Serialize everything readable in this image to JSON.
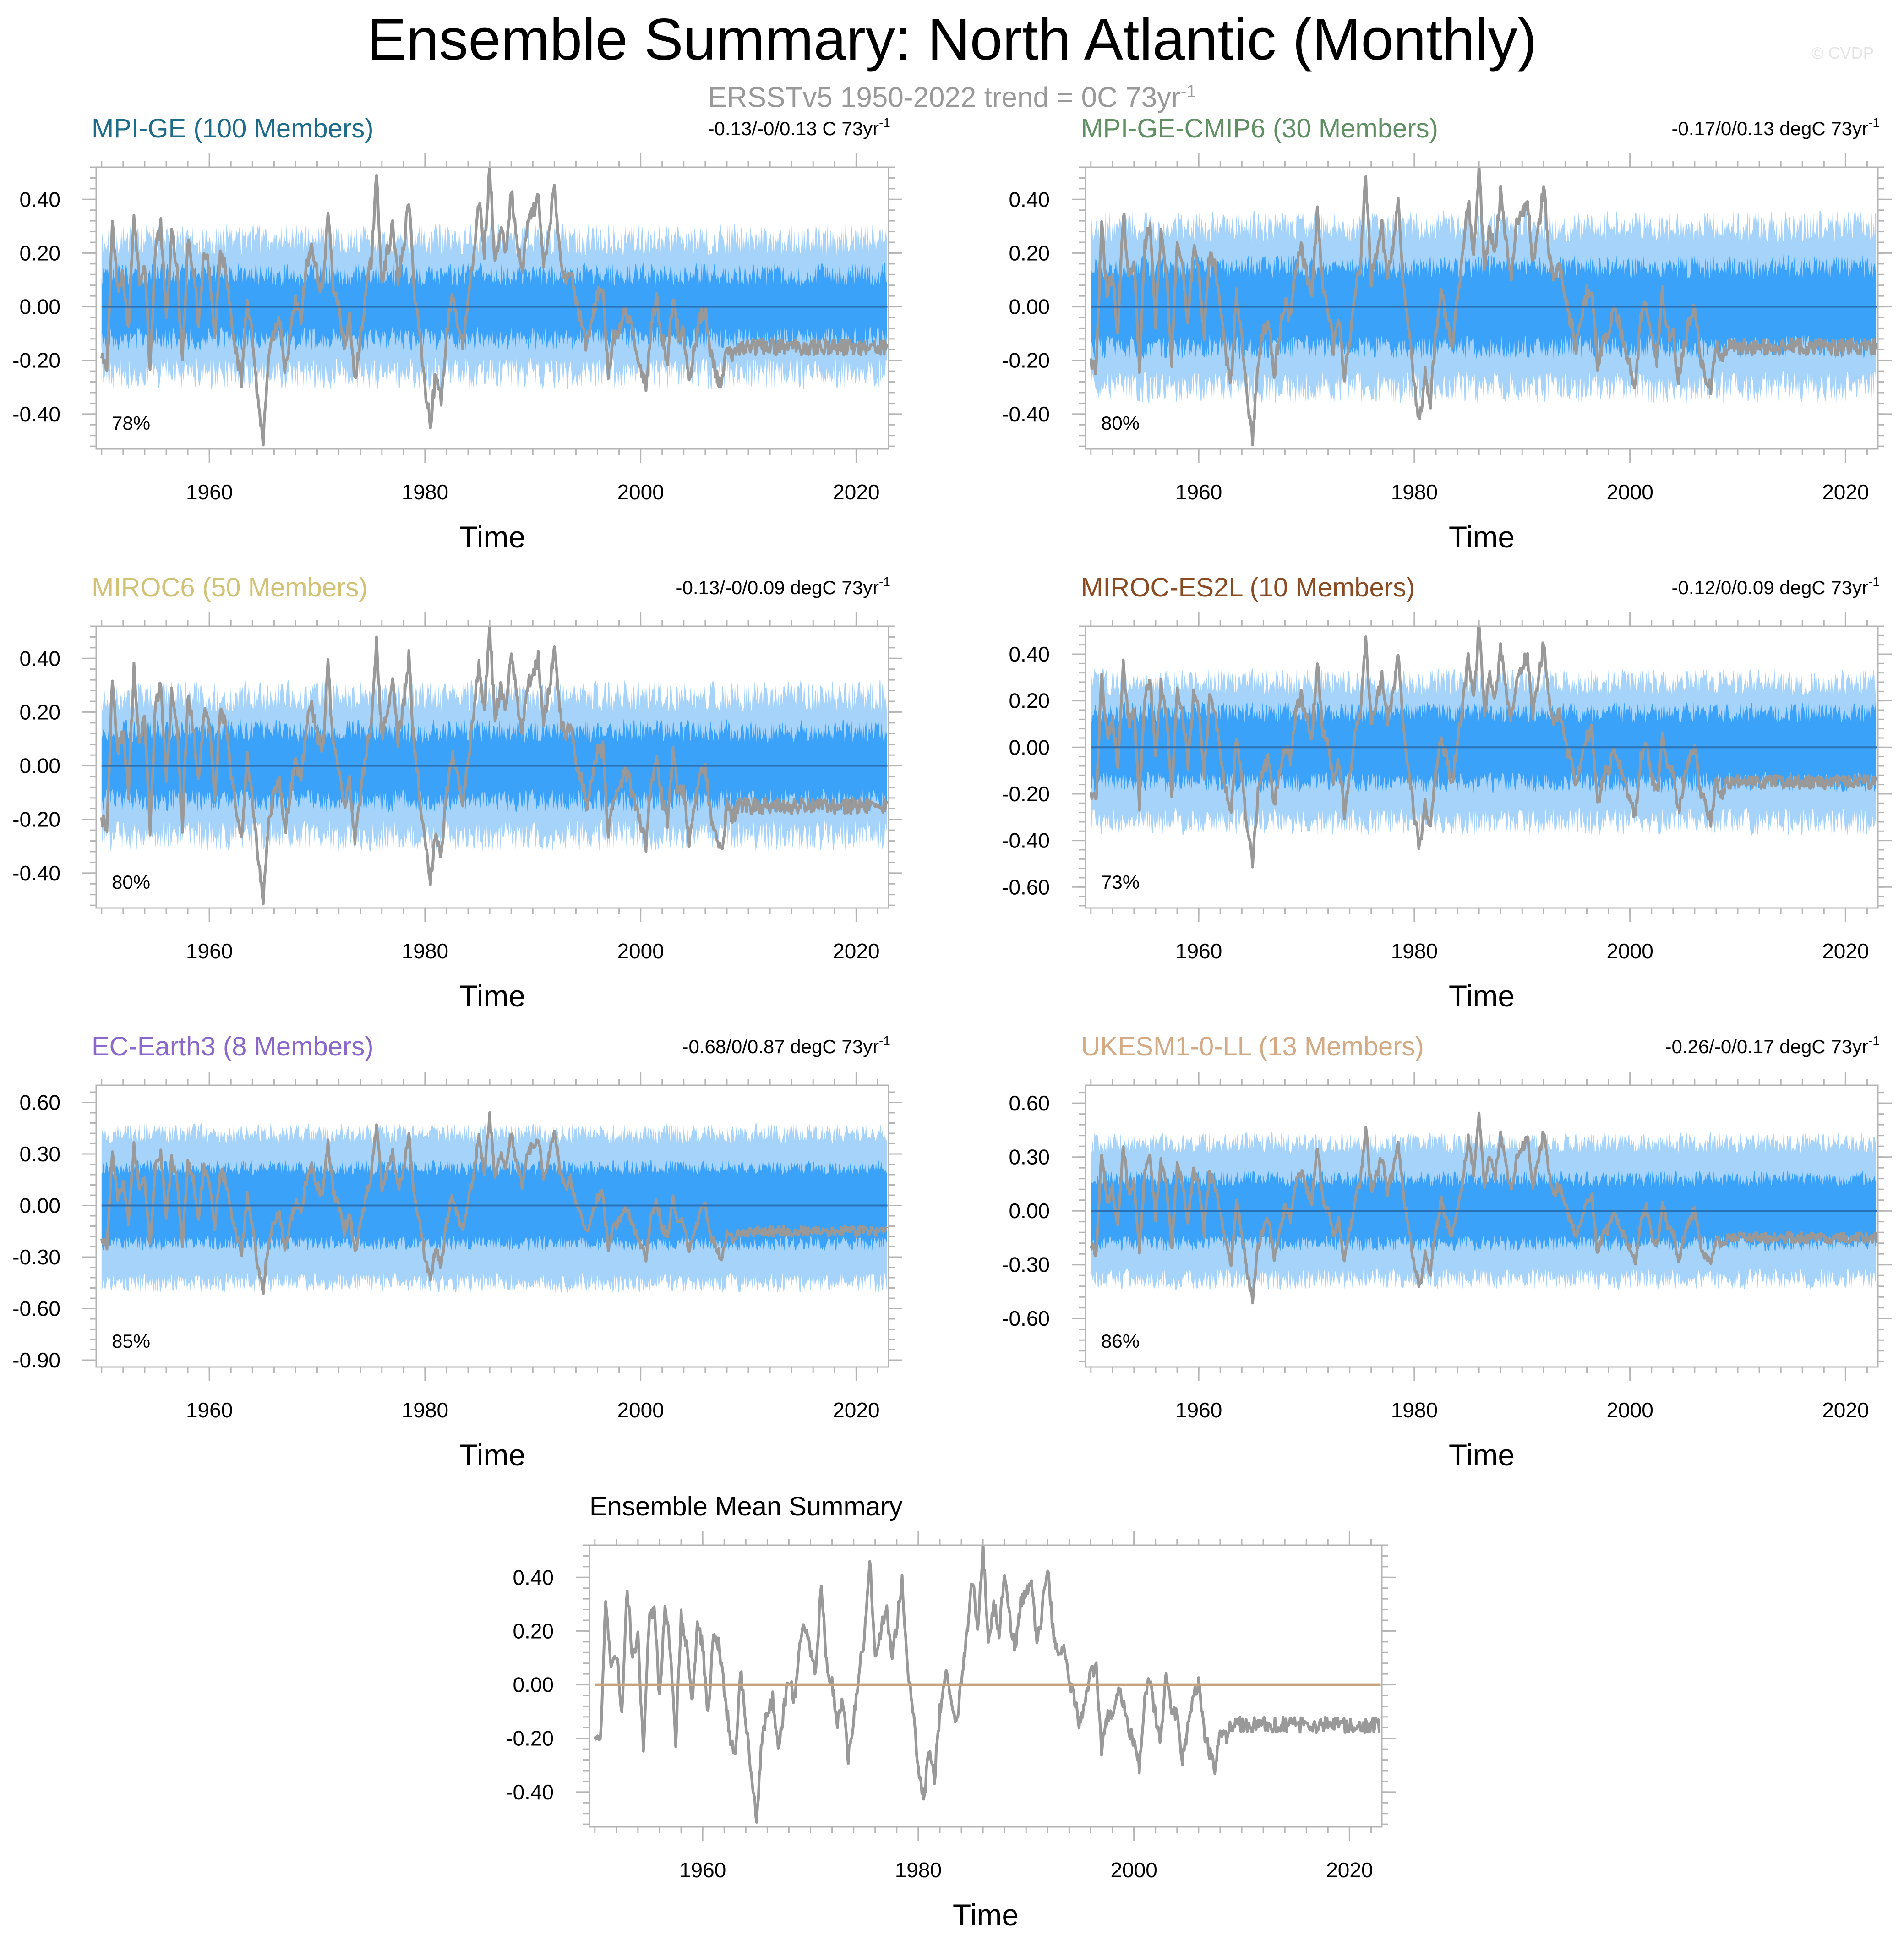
{
  "title": "Ensemble Summary: North Atlantic (Monthly)",
  "subtitle": {
    "text": "ERSSTv5 1950-2022 trend = 0C 73yr",
    "exp": "-1"
  },
  "watermark": "© CVDP",
  "colors": {
    "observed": "#999999",
    "outer_band": "#a6d3fa",
    "inner_band": "#3ba2fa",
    "ensemble_mean_line": "#2a72b8",
    "summary_line": "#c9a27e",
    "frame": "#b5b5b5"
  },
  "chart_data": [
    {
      "type": "area",
      "id": "mpi-ge",
      "title": "MPI-GE (100 Members)",
      "title_color": "#1f6c8a",
      "trend_label": "-0.13/-0/0.13 C 73yr",
      "trend_exp": "-1",
      "percent_label": "78%",
      "xlabel": "Time",
      "xlim": [
        1949.5,
        2023.0
      ],
      "ylim": [
        -0.53,
        0.52
      ],
      "yticks": [
        -0.4,
        -0.2,
        0.0,
        0.2,
        0.4
      ],
      "ytick_labels": [
        "-0.40",
        "-0.20",
        "0.00",
        "0.20",
        "0.40"
      ],
      "xticks": [
        1960,
        1980,
        2000,
        2020
      ],
      "xtick_labels": [
        "1960",
        "1980",
        "2000",
        "2020"
      ],
      "outer_band": [
        -0.25,
        0.25
      ],
      "inner_band": [
        -0.12,
        0.12
      ],
      "ensemble_mean": 0.0,
      "seed": 11
    },
    {
      "type": "area",
      "id": "mpi-ge-cmip6",
      "title": "MPI-GE-CMIP6 (30 Members)",
      "title_color": "#5f8f63",
      "trend_label": "-0.17/0/0.13 degC 73yr",
      "trend_exp": "-1",
      "percent_label": "80%",
      "xlabel": "Time",
      "xlim": [
        1949.5,
        2023.0
      ],
      "ylim": [
        -0.53,
        0.52
      ],
      "yticks": [
        -0.4,
        -0.2,
        0.0,
        0.2,
        0.4
      ],
      "ytick_labels": [
        "-0.40",
        "-0.20",
        "0.00",
        "0.20",
        "0.40"
      ],
      "xticks": [
        1960,
        1980,
        2000,
        2020
      ],
      "xtick_labels": [
        "1960",
        "1980",
        "2000",
        "2020"
      ],
      "outer_band": [
        -0.3,
        0.3
      ],
      "inner_band": [
        -0.15,
        0.15
      ],
      "ensemble_mean": 0.0,
      "seed": 23
    },
    {
      "type": "area",
      "id": "miroc6",
      "title": "MIROC6 (50 Members)",
      "title_color": "#d2c276",
      "trend_label": "-0.13/-0/0.09 degC 73yr",
      "trend_exp": "-1",
      "percent_label": "80%",
      "xlabel": "Time",
      "xlim": [
        1949.5,
        2023.0
      ],
      "ylim": [
        -0.53,
        0.52
      ],
      "yticks": [
        -0.4,
        -0.2,
        0.0,
        0.2,
        0.4
      ],
      "ytick_labels": [
        "-0.40",
        "-0.20",
        "0.00",
        "0.20",
        "0.40"
      ],
      "xticks": [
        1960,
        1980,
        2000,
        2020
      ],
      "xtick_labels": [
        "1960",
        "1980",
        "2000",
        "2020"
      ],
      "outer_band": [
        -0.26,
        0.26
      ],
      "inner_band": [
        -0.13,
        0.13
      ],
      "ensemble_mean": 0.0,
      "seed": 37
    },
    {
      "type": "area",
      "id": "miroc-es2l",
      "title": "MIROC-ES2L (10 Members)",
      "title_color": "#8a4a22",
      "trend_label": "-0.12/0/0.09 degC 73yr",
      "trend_exp": "-1",
      "percent_label": "73%",
      "xlabel": "Time",
      "xlim": [
        1949.5,
        2023.0
      ],
      "ylim": [
        -0.69,
        0.52
      ],
      "yticks": [
        -0.6,
        -0.4,
        -0.2,
        0.0,
        0.2,
        0.4
      ],
      "ytick_labels": [
        "-0.60",
        "-0.40",
        "-0.20",
        "0.00",
        "0.20",
        "0.40"
      ],
      "xticks": [
        1960,
        1980,
        2000,
        2020
      ],
      "xtick_labels": [
        "1960",
        "1980",
        "2000",
        "2020"
      ],
      "outer_band": [
        -0.32,
        0.28
      ],
      "inner_band": [
        -0.15,
        0.15
      ],
      "ensemble_mean": 0.0,
      "seed": 41
    },
    {
      "type": "area",
      "id": "ec-earth3",
      "title": "EC-Earth3 (8 Members)",
      "title_color": "#8a67c9",
      "trend_label": "-0.68/0/0.87 degC 73yr",
      "trend_exp": "-1",
      "percent_label": "85%",
      "xlabel": "Time",
      "xlim": [
        1949.5,
        2023.0
      ],
      "ylim": [
        -0.94,
        0.7
      ],
      "yticks": [
        -0.9,
        -0.6,
        -0.3,
        0.0,
        0.3,
        0.6
      ],
      "ytick_labels": [
        "-0.90",
        "-0.60",
        "-0.30",
        "0.00",
        "0.30",
        "0.60"
      ],
      "xticks": [
        1960,
        1980,
        2000,
        2020
      ],
      "xtick_labels": [
        "1960",
        "1980",
        "2000",
        "2020"
      ],
      "outer_band": [
        -0.45,
        0.42
      ],
      "inner_band": [
        -0.22,
        0.22
      ],
      "ensemble_mean": 0.0,
      "seed": 53
    },
    {
      "type": "area",
      "id": "ukesm1-0-ll",
      "title": "UKESM1-0-LL (13 Members)",
      "title_color": "#d4aa85",
      "trend_label": "-0.26/-0/0.17 degC 73yr",
      "trend_exp": "-1",
      "percent_label": "86%",
      "xlabel": "Time",
      "xlim": [
        1949.5,
        2023.0
      ],
      "ylim": [
        -0.87,
        0.7
      ],
      "yticks": [
        -0.6,
        -0.3,
        0.0,
        0.3,
        0.6
      ],
      "ytick_labels": [
        "-0.60",
        "-0.30",
        "0.00",
        "0.30",
        "0.60"
      ],
      "xticks": [
        1960,
        1980,
        2000,
        2020
      ],
      "xtick_labels": [
        "1960",
        "1980",
        "2000",
        "2020"
      ],
      "outer_band": [
        -0.38,
        0.38
      ],
      "inner_band": [
        -0.18,
        0.18
      ],
      "ensemble_mean": 0.0,
      "seed": 67
    },
    {
      "type": "line",
      "id": "ensemble-mean-summary",
      "title": "Ensemble Mean Summary",
      "title_color": "#000000",
      "xlabel": "Time",
      "xlim": [
        1949.5,
        2023.0
      ],
      "ylim": [
        -0.53,
        0.52
      ],
      "yticks": [
        -0.4,
        -0.2,
        0.0,
        0.2,
        0.4
      ],
      "ytick_labels": [
        "-0.40",
        "-0.20",
        "0.00",
        "0.20",
        "0.40"
      ],
      "xticks": [
        1960,
        1980,
        2000,
        2020
      ],
      "xtick_labels": [
        "1960",
        "1980",
        "2000",
        "2020"
      ],
      "ensemble_mean": 0.0
    }
  ],
  "observed_series": {
    "name": "ERSSTv5",
    "start_year": 1950,
    "step_years": 0.5,
    "values": [
      -0.2,
      -0.23,
      0.32,
      0.05,
      0.12,
      -0.1,
      0.36,
      0.1,
      0.17,
      -0.25,
      0.23,
      0.3,
      -0.05,
      0.27,
      0.14,
      -0.22,
      0.25,
      0.15,
      -0.07,
      0.22,
      0.15,
      -0.12,
      0.2,
      0.15,
      -0.02,
      -0.18,
      -0.28,
      0.05,
      -0.12,
      -0.35,
      -0.5,
      -0.2,
      -0.1,
      -0.05,
      -0.25,
      -0.1,
      0.02,
      -0.05,
      0.15,
      0.22,
      0.12,
      0.05,
      0.37,
      0.07,
      0.0,
      -0.15,
      -0.05,
      -0.28,
      -0.12,
      0.05,
      0.17,
      0.48,
      0.1,
      0.2,
      0.3,
      0.1,
      0.22,
      0.4,
      0.07,
      -0.1,
      -0.3,
      -0.43,
      -0.25,
      -0.35,
      -0.1,
      0.05,
      -0.05,
      -0.15,
      0.02,
      0.18,
      0.4,
      0.2,
      0.52,
      0.15,
      0.3,
      0.2,
      0.43,
      0.25,
      0.12,
      0.3,
      0.35,
      0.4,
      0.15,
      0.28,
      0.45,
      0.2,
      0.1,
      0.15,
      0.02,
      -0.05,
      -0.15,
      -0.05,
      0.05,
      0.07,
      -0.25,
      -0.12,
      -0.1,
      -0.02,
      -0.06,
      -0.15,
      -0.22,
      -0.3,
      -0.05,
      0.02,
      -0.12,
      -0.2,
      0.05,
      -0.1,
      -0.1,
      -0.28,
      -0.15,
      -0.05,
      0.0,
      -0.18,
      -0.25,
      -0.31,
      -0.15,
      -0.2,
      -0.15
    ]
  }
}
